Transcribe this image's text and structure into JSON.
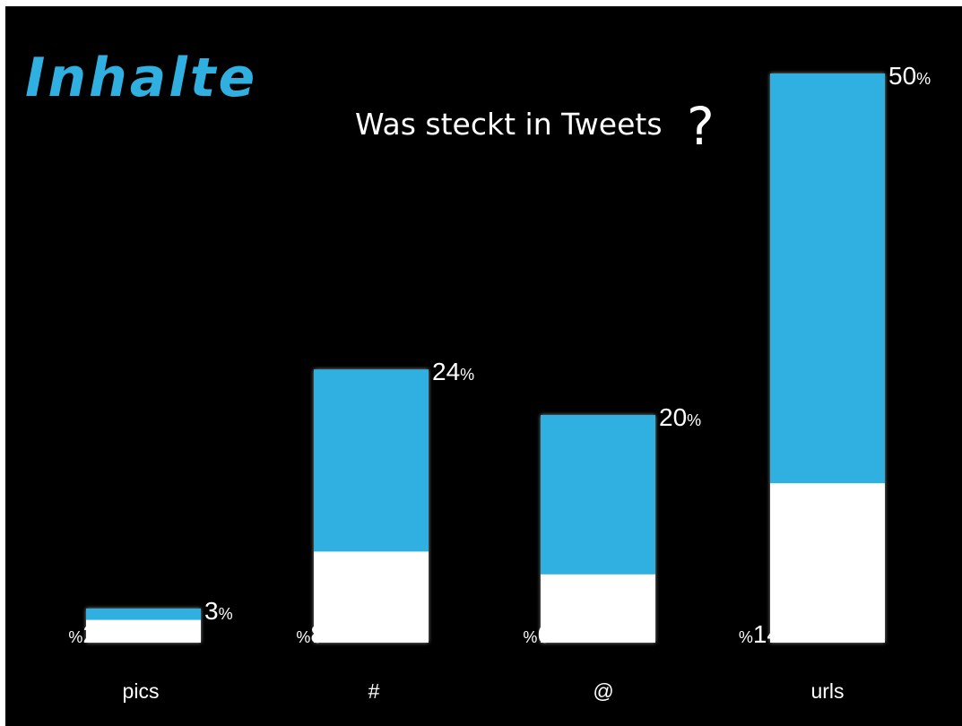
{
  "logo": {
    "text": "Inhalte"
  },
  "subtitle": "Was steckt in Tweets",
  "question_mark": "?",
  "colors": {
    "background": "#000000",
    "accent": "#2fb0e0",
    "secondary": "#ffffff"
  },
  "chart_data": {
    "type": "bar",
    "stacked": false,
    "overlapping": true,
    "categories": [
      "pics",
      "#",
      "@",
      "urls"
    ],
    "series": [
      {
        "color": "#2fb0e0",
        "values": [
          3,
          24,
          20,
          50
        ]
      },
      {
        "color": "#ffffff",
        "values": [
          2,
          8,
          6,
          14
        ]
      }
    ],
    "value_labels_top": [
      "3",
      "24",
      "20",
      "50"
    ],
    "value_labels_bottom": [
      "2",
      "8",
      "6",
      "14"
    ],
    "unit": "%",
    "ylim": [
      0,
      50
    ],
    "grid": false,
    "legend": "none"
  }
}
